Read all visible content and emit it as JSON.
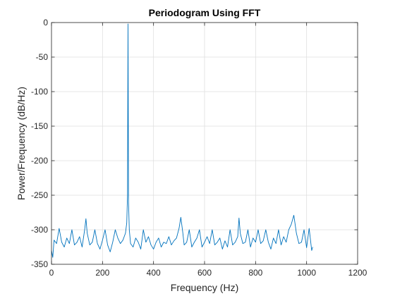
{
  "chart_data": {
    "type": "line",
    "title": "Periodogram Using FFT",
    "xlabel": "Frequency (Hz)",
    "ylabel": "Power/Frequency (dB/Hz)",
    "xlim": [
      0,
      1200
    ],
    "ylim": [
      -350,
      0
    ],
    "xticks": [
      0,
      200,
      400,
      600,
      800,
      1000,
      1200
    ],
    "yticks": [
      0,
      -50,
      -100,
      -150,
      -200,
      -250,
      -300,
      -350
    ],
    "grid": true,
    "legend": "none",
    "colors": {
      "line": "#0072BD",
      "grid": "#dfdfdf",
      "axis": "#262626"
    },
    "series": [
      {
        "x": [
          0,
          5,
          10,
          20,
          30,
          40,
          50,
          60,
          70,
          80,
          90,
          100,
          110,
          120,
          130,
          135,
          140,
          150,
          160,
          170,
          180,
          190,
          200,
          210,
          220,
          230,
          240,
          250,
          260,
          270,
          280,
          290,
          295,
          298,
          299,
          300,
          301,
          302,
          305,
          310,
          320,
          330,
          340,
          350,
          360,
          370,
          380,
          390,
          400,
          410,
          420,
          430,
          440,
          450,
          460,
          470,
          480,
          490,
          500,
          507,
          515,
          520,
          530,
          540,
          550,
          560,
          570,
          580,
          590,
          600,
          610,
          620,
          630,
          640,
          650,
          660,
          670,
          680,
          690,
          700,
          710,
          720,
          730,
          735,
          740,
          750,
          760,
          770,
          780,
          790,
          800,
          810,
          820,
          830,
          840,
          850,
          860,
          870,
          880,
          890,
          900,
          910,
          920,
          930,
          940,
          950,
          960,
          970,
          980,
          990,
          1000,
          1010,
          1020,
          1024
        ],
        "y": [
          -330,
          -340,
          -315,
          -320,
          -298,
          -318,
          -325,
          -312,
          -320,
          -300,
          -322,
          -318,
          -310,
          -325,
          -300,
          -284,
          -305,
          -322,
          -318,
          -300,
          -320,
          -328,
          -315,
          -300,
          -322,
          -332,
          -318,
          -300,
          -312,
          -320,
          -315,
          -305,
          -290,
          -250,
          -120,
          -2,
          -130,
          -260,
          -300,
          -320,
          -325,
          -312,
          -318,
          -328,
          -300,
          -318,
          -310,
          -322,
          -328,
          -318,
          -312,
          -325,
          -318,
          -320,
          -310,
          -322,
          -316,
          -312,
          -298,
          -282,
          -305,
          -322,
          -318,
          -300,
          -325,
          -318,
          -312,
          -300,
          -325,
          -318,
          -310,
          -320,
          -300,
          -322,
          -318,
          -312,
          -328,
          -316,
          -325,
          -300,
          -322,
          -318,
          -310,
          -283,
          -305,
          -320,
          -318,
          -300,
          -325,
          -312,
          -318,
          -300,
          -320,
          -316,
          -300,
          -318,
          -328,
          -312,
          -320,
          -300,
          -322,
          -310,
          -318,
          -300,
          -292,
          -279,
          -305,
          -320,
          -318,
          -300,
          -326,
          -298,
          -330,
          -325
        ]
      }
    ]
  }
}
